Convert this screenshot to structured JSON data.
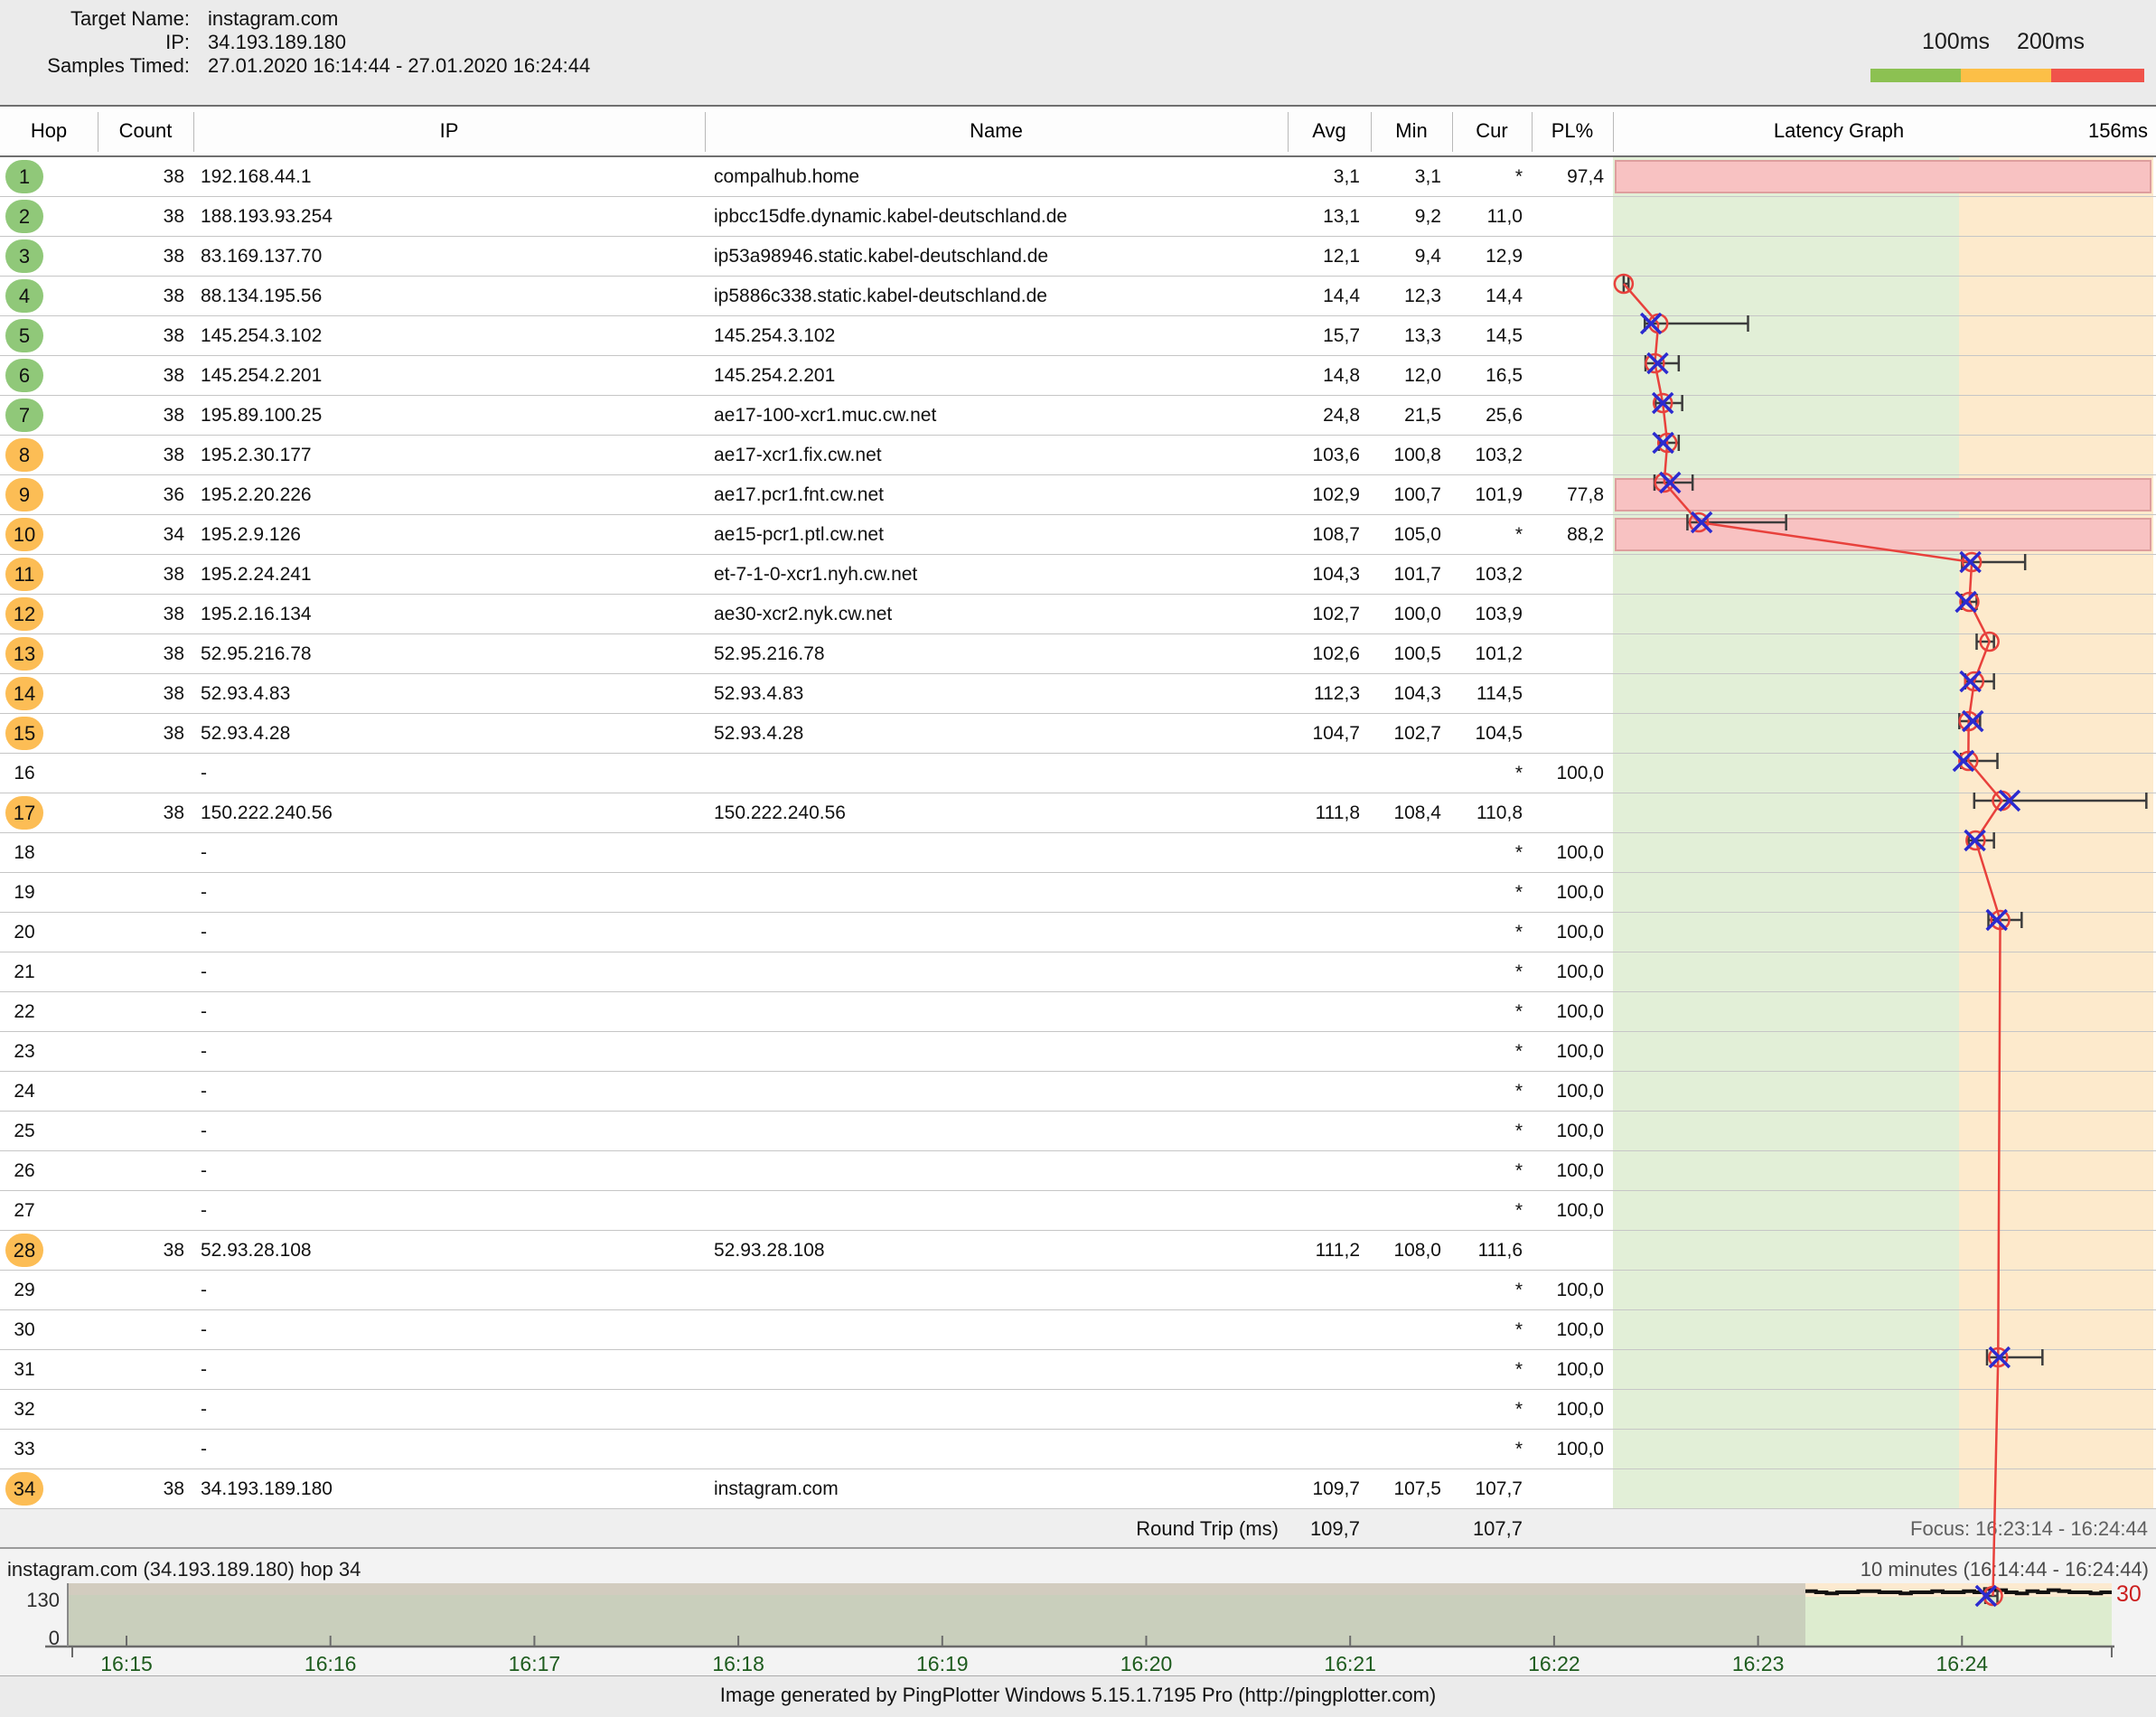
{
  "header": {
    "lines": [
      {
        "label": "Target Name:",
        "value": "instagram.com"
      },
      {
        "label": "IP:",
        "value": "34.193.189.180"
      },
      {
        "label": "Samples Timed:",
        "value": "27.01.2020 16:14:44 - 27.01.2020 16:24:44"
      }
    ]
  },
  "legend": {
    "label_100": "100ms",
    "label_200": "200ms",
    "colors": {
      "green": "#8cc152",
      "yellow": "#fcbf47",
      "red": "#f0534b"
    }
  },
  "table": {
    "columns": [
      "Hop",
      "Count",
      "IP",
      "Name",
      "Avg",
      "Min",
      "Cur",
      "PL%"
    ],
    "graph_title": "Latency Graph",
    "graph_scale_label": "156ms",
    "graph_scale_max_ms": 156,
    "zone_boundary_ms": 100,
    "colors": {
      "green_zone": "#e2efd7",
      "orange_zone": "#fdeacc",
      "loss_fill": "#f8c2c2",
      "loss_border": "#de9e9e",
      "avg_line": "#e8413c",
      "cur_mark": "#2b2bd0",
      "whisker": "#3c3c3c",
      "hop_green": "#90c879",
      "hop_orange": "#fcbd55"
    },
    "rows": [
      {
        "hop": "1",
        "circle": "green",
        "count": "38",
        "ip": "192.168.44.1",
        "name": "compalhub.home",
        "avg": "3,1",
        "min": "3,1",
        "cur": "*",
        "pl": "97,4",
        "loss_bar": true,
        "plot": {
          "a": 3.1,
          "mn": 3.1,
          "mx": 4.5,
          "c": null
        }
      },
      {
        "hop": "2",
        "circle": "green",
        "count": "38",
        "ip": "188.193.93.254",
        "name": "ipbcc15dfe.dynamic.kabel-deutschland.de",
        "avg": "13,1",
        "min": "9,2",
        "cur": "11,0",
        "pl": "",
        "loss_bar": false,
        "plot": {
          "a": 13.1,
          "mn": 9.2,
          "mx": 39,
          "c": 11.0
        }
      },
      {
        "hop": "3",
        "circle": "green",
        "count": "38",
        "ip": "83.169.137.70",
        "name": "ip53a98946.static.kabel-deutschland.de",
        "avg": "12,1",
        "min": "9,4",
        "cur": "12,9",
        "pl": "",
        "loss_bar": false,
        "plot": {
          "a": 12.1,
          "mn": 9.4,
          "mx": 19,
          "c": 12.9
        }
      },
      {
        "hop": "4",
        "circle": "green",
        "count": "38",
        "ip": "88.134.195.56",
        "name": "ip5886c338.static.kabel-deutschland.de",
        "avg": "14,4",
        "min": "12,3",
        "cur": "14,4",
        "pl": "",
        "loss_bar": false,
        "plot": {
          "a": 14.4,
          "mn": 12.3,
          "mx": 20,
          "c": 14.4
        }
      },
      {
        "hop": "5",
        "circle": "green",
        "count": "38",
        "ip": "145.254.3.102",
        "name": "145.254.3.102",
        "avg": "15,7",
        "min": "13,3",
        "cur": "14,5",
        "pl": "",
        "loss_bar": false,
        "plot": {
          "a": 15.7,
          "mn": 13.3,
          "mx": 19,
          "c": 14.5
        }
      },
      {
        "hop": "6",
        "circle": "green",
        "count": "38",
        "ip": "145.254.2.201",
        "name": "145.254.2.201",
        "avg": "14,8",
        "min": "12,0",
        "cur": "16,5",
        "pl": "",
        "loss_bar": false,
        "plot": {
          "a": 14.8,
          "mn": 12.0,
          "mx": 23,
          "c": 16.5
        }
      },
      {
        "hop": "7",
        "circle": "green",
        "count": "38",
        "ip": "195.89.100.25",
        "name": "ae17-100-xcr1.muc.cw.net",
        "avg": "24,8",
        "min": "21,5",
        "cur": "25,6",
        "pl": "",
        "loss_bar": false,
        "plot": {
          "a": 24.8,
          "mn": 21.5,
          "mx": 50,
          "c": 25.6
        }
      },
      {
        "hop": "8",
        "circle": "orange",
        "count": "38",
        "ip": "195.2.30.177",
        "name": "ae17-xcr1.fix.cw.net",
        "avg": "103,6",
        "min": "100,8",
        "cur": "103,2",
        "pl": "",
        "loss_bar": false,
        "plot": {
          "a": 103.6,
          "mn": 100.8,
          "mx": 119,
          "c": 103.2
        }
      },
      {
        "hop": "9",
        "circle": "orange",
        "count": "36",
        "ip": "195.2.20.226",
        "name": "ae17.pcr1.fnt.cw.net",
        "avg": "102,9",
        "min": "100,7",
        "cur": "101,9",
        "pl": "77,8",
        "loss_bar": true,
        "plot": {
          "a": 102.9,
          "mn": 100.7,
          "mx": 105,
          "c": 101.9
        }
      },
      {
        "hop": "10",
        "circle": "orange",
        "count": "34",
        "ip": "195.2.9.126",
        "name": "ae15-pcr1.ptl.cw.net",
        "avg": "108,7",
        "min": "105,0",
        "cur": "*",
        "pl": "88,2",
        "loss_bar": true,
        "plot": {
          "a": 108.7,
          "mn": 105.0,
          "mx": 110,
          "c": null
        }
      },
      {
        "hop": "11",
        "circle": "orange",
        "count": "38",
        "ip": "195.2.24.241",
        "name": "et-7-1-0-xcr1.nyh.cw.net",
        "avg": "104,3",
        "min": "101,7",
        "cur": "103,2",
        "pl": "",
        "loss_bar": false,
        "plot": {
          "a": 104.3,
          "mn": 101.7,
          "mx": 110,
          "c": 103.2
        }
      },
      {
        "hop": "12",
        "circle": "orange",
        "count": "38",
        "ip": "195.2.16.134",
        "name": "ae30-xcr2.nyk.cw.net",
        "avg": "102,7",
        "min": "100,0",
        "cur": "103,9",
        "pl": "",
        "loss_bar": false,
        "plot": {
          "a": 102.7,
          "mn": 100.0,
          "mx": 106,
          "c": 103.9
        }
      },
      {
        "hop": "13",
        "circle": "orange",
        "count": "38",
        "ip": "52.95.216.78",
        "name": "52.95.216.78",
        "avg": "102,6",
        "min": "100,5",
        "cur": "101,2",
        "pl": "",
        "loss_bar": false,
        "plot": {
          "a": 102.6,
          "mn": 100.5,
          "mx": 111,
          "c": 101.2
        }
      },
      {
        "hop": "14",
        "circle": "orange",
        "count": "38",
        "ip": "52.93.4.83",
        "name": "52.93.4.83",
        "avg": "112,3",
        "min": "104,3",
        "cur": "114,5",
        "pl": "",
        "loss_bar": false,
        "plot": {
          "a": 112.3,
          "mn": 104.3,
          "mx": 154,
          "c": 114.5
        }
      },
      {
        "hop": "15",
        "circle": "orange",
        "count": "38",
        "ip": "52.93.4.28",
        "name": "52.93.4.28",
        "avg": "104,7",
        "min": "102,7",
        "cur": "104,5",
        "pl": "",
        "loss_bar": false,
        "plot": {
          "a": 104.7,
          "mn": 102.7,
          "mx": 110,
          "c": 104.5
        }
      },
      {
        "hop": "16",
        "circle": null,
        "count": "",
        "ip": "-",
        "name": "",
        "avg": "",
        "min": "",
        "cur": "*",
        "pl": "100,0",
        "loss_bar": false,
        "plot": null
      },
      {
        "hop": "17",
        "circle": "orange",
        "count": "38",
        "ip": "150.222.240.56",
        "name": "150.222.240.56",
        "avg": "111,8",
        "min": "108,4",
        "cur": "110,8",
        "pl": "",
        "loss_bar": false,
        "plot": {
          "a": 111.8,
          "mn": 108.4,
          "mx": 118,
          "c": 110.8
        }
      },
      {
        "hop": "18",
        "circle": null,
        "count": "",
        "ip": "-",
        "name": "",
        "avg": "",
        "min": "",
        "cur": "*",
        "pl": "100,0",
        "loss_bar": false,
        "plot": null
      },
      {
        "hop": "19",
        "circle": null,
        "count": "",
        "ip": "-",
        "name": "",
        "avg": "",
        "min": "",
        "cur": "*",
        "pl": "100,0",
        "loss_bar": false,
        "plot": null
      },
      {
        "hop": "20",
        "circle": null,
        "count": "",
        "ip": "-",
        "name": "",
        "avg": "",
        "min": "",
        "cur": "*",
        "pl": "100,0",
        "loss_bar": false,
        "plot": null
      },
      {
        "hop": "21",
        "circle": null,
        "count": "",
        "ip": "-",
        "name": "",
        "avg": "",
        "min": "",
        "cur": "*",
        "pl": "100,0",
        "loss_bar": false,
        "plot": null
      },
      {
        "hop": "22",
        "circle": null,
        "count": "",
        "ip": "-",
        "name": "",
        "avg": "",
        "min": "",
        "cur": "*",
        "pl": "100,0",
        "loss_bar": false,
        "plot": null
      },
      {
        "hop": "23",
        "circle": null,
        "count": "",
        "ip": "-",
        "name": "",
        "avg": "",
        "min": "",
        "cur": "*",
        "pl": "100,0",
        "loss_bar": false,
        "plot": null
      },
      {
        "hop": "24",
        "circle": null,
        "count": "",
        "ip": "-",
        "name": "",
        "avg": "",
        "min": "",
        "cur": "*",
        "pl": "100,0",
        "loss_bar": false,
        "plot": null
      },
      {
        "hop": "25",
        "circle": null,
        "count": "",
        "ip": "-",
        "name": "",
        "avg": "",
        "min": "",
        "cur": "*",
        "pl": "100,0",
        "loss_bar": false,
        "plot": null
      },
      {
        "hop": "26",
        "circle": null,
        "count": "",
        "ip": "-",
        "name": "",
        "avg": "",
        "min": "",
        "cur": "*",
        "pl": "100,0",
        "loss_bar": false,
        "plot": null
      },
      {
        "hop": "27",
        "circle": null,
        "count": "",
        "ip": "-",
        "name": "",
        "avg": "",
        "min": "",
        "cur": "*",
        "pl": "100,0",
        "loss_bar": false,
        "plot": null
      },
      {
        "hop": "28",
        "circle": "orange",
        "count": "38",
        "ip": "52.93.28.108",
        "name": "52.93.28.108",
        "avg": "111,2",
        "min": "108,0",
        "cur": "111,6",
        "pl": "",
        "loss_bar": false,
        "plot": {
          "a": 111.2,
          "mn": 108.0,
          "mx": 124,
          "c": 111.6
        }
      },
      {
        "hop": "29",
        "circle": null,
        "count": "",
        "ip": "-",
        "name": "",
        "avg": "",
        "min": "",
        "cur": "*",
        "pl": "100,0",
        "loss_bar": false,
        "plot": null
      },
      {
        "hop": "30",
        "circle": null,
        "count": "",
        "ip": "-",
        "name": "",
        "avg": "",
        "min": "",
        "cur": "*",
        "pl": "100,0",
        "loss_bar": false,
        "plot": null
      },
      {
        "hop": "31",
        "circle": null,
        "count": "",
        "ip": "-",
        "name": "",
        "avg": "",
        "min": "",
        "cur": "*",
        "pl": "100,0",
        "loss_bar": false,
        "plot": null
      },
      {
        "hop": "32",
        "circle": null,
        "count": "",
        "ip": "-",
        "name": "",
        "avg": "",
        "min": "",
        "cur": "*",
        "pl": "100,0",
        "loss_bar": false,
        "plot": null
      },
      {
        "hop": "33",
        "circle": null,
        "count": "",
        "ip": "-",
        "name": "",
        "avg": "",
        "min": "",
        "cur": "*",
        "pl": "100,0",
        "loss_bar": false,
        "plot": null
      },
      {
        "hop": "34",
        "circle": "orange",
        "count": "38",
        "ip": "34.193.189.180",
        "name": "instagram.com",
        "avg": "109,7",
        "min": "107,5",
        "cur": "107,7",
        "pl": "",
        "loss_bar": false,
        "plot": {
          "a": 109.7,
          "mn": 107.5,
          "mx": 111,
          "c": 107.7
        }
      }
    ],
    "round_trip": {
      "label": "Round Trip (ms)",
      "avg": "109,7",
      "cur": "107,7"
    },
    "focus_label": "Focus: 16:23:14 - 16:24:44"
  },
  "timeline": {
    "title": "instagram.com (34.193.189.180) hop 34",
    "range_label": "10 minutes (16:14:44 - 16:24:44)",
    "ymax_label": "130",
    "ymin_label": "0",
    "sample_count_label": "30",
    "tick_labels": [
      "16:15",
      "16:16",
      "16:17",
      "16:18",
      "16:19",
      "16:20",
      "16:21",
      "16:22",
      "16:23",
      "16:24"
    ],
    "samples": [
      111,
      111,
      110,
      109,
      110,
      110,
      111,
      111,
      110,
      110,
      109,
      110,
      110,
      111,
      110,
      110,
      111,
      110,
      113,
      112,
      110,
      109,
      111,
      110,
      112,
      111,
      110,
      110,
      109,
      110
    ],
    "colors": {
      "unfocused_bg": "#c9cfbc",
      "unfocused_band": "#d2ccbf",
      "focused_bg": "#ddeccf",
      "focused_band": "#fcead0",
      "line": "#111111",
      "time_label": "#1e5c1e",
      "count_label": "#cc1f1f"
    }
  },
  "footer": "Image generated by PingPlotter Windows 5.15.1.7195 Pro (http://pingplotter.com)"
}
